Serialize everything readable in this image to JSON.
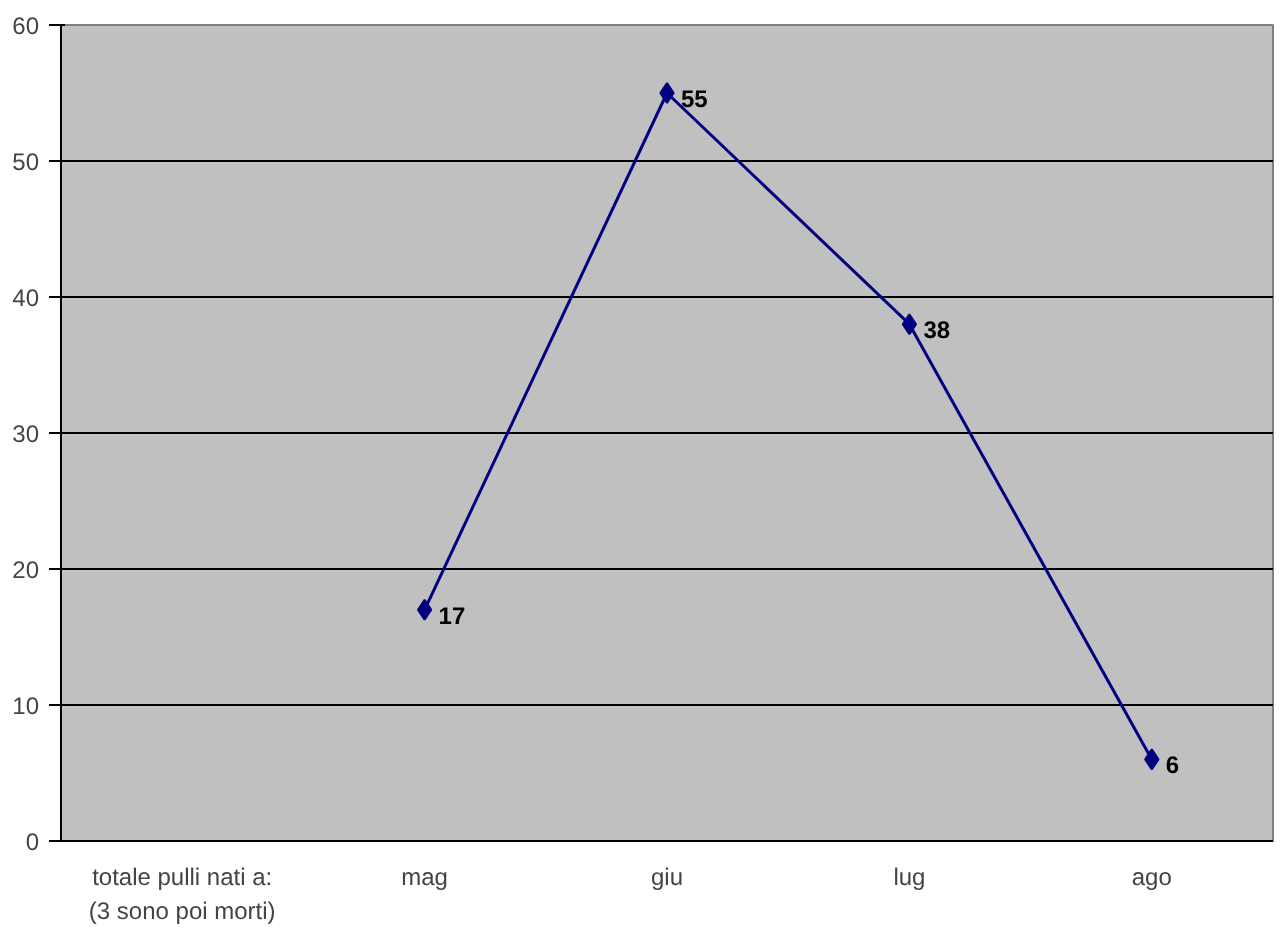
{
  "chart_data": {
    "type": "line",
    "categories": [
      "totale pulli nati a:\n(3 sono poi morti)",
      "mag",
      "giu",
      "lug",
      "ago"
    ],
    "series": [
      {
        "color": "#000080",
        "values": [
          null,
          17,
          55,
          38,
          6
        ]
      }
    ],
    "ylim": [
      0,
      60
    ],
    "yticks": [
      0,
      10,
      20,
      30,
      40,
      50,
      60
    ],
    "grid": "y",
    "marker": "diamond",
    "line_style": "solid",
    "data_labels": true
  }
}
